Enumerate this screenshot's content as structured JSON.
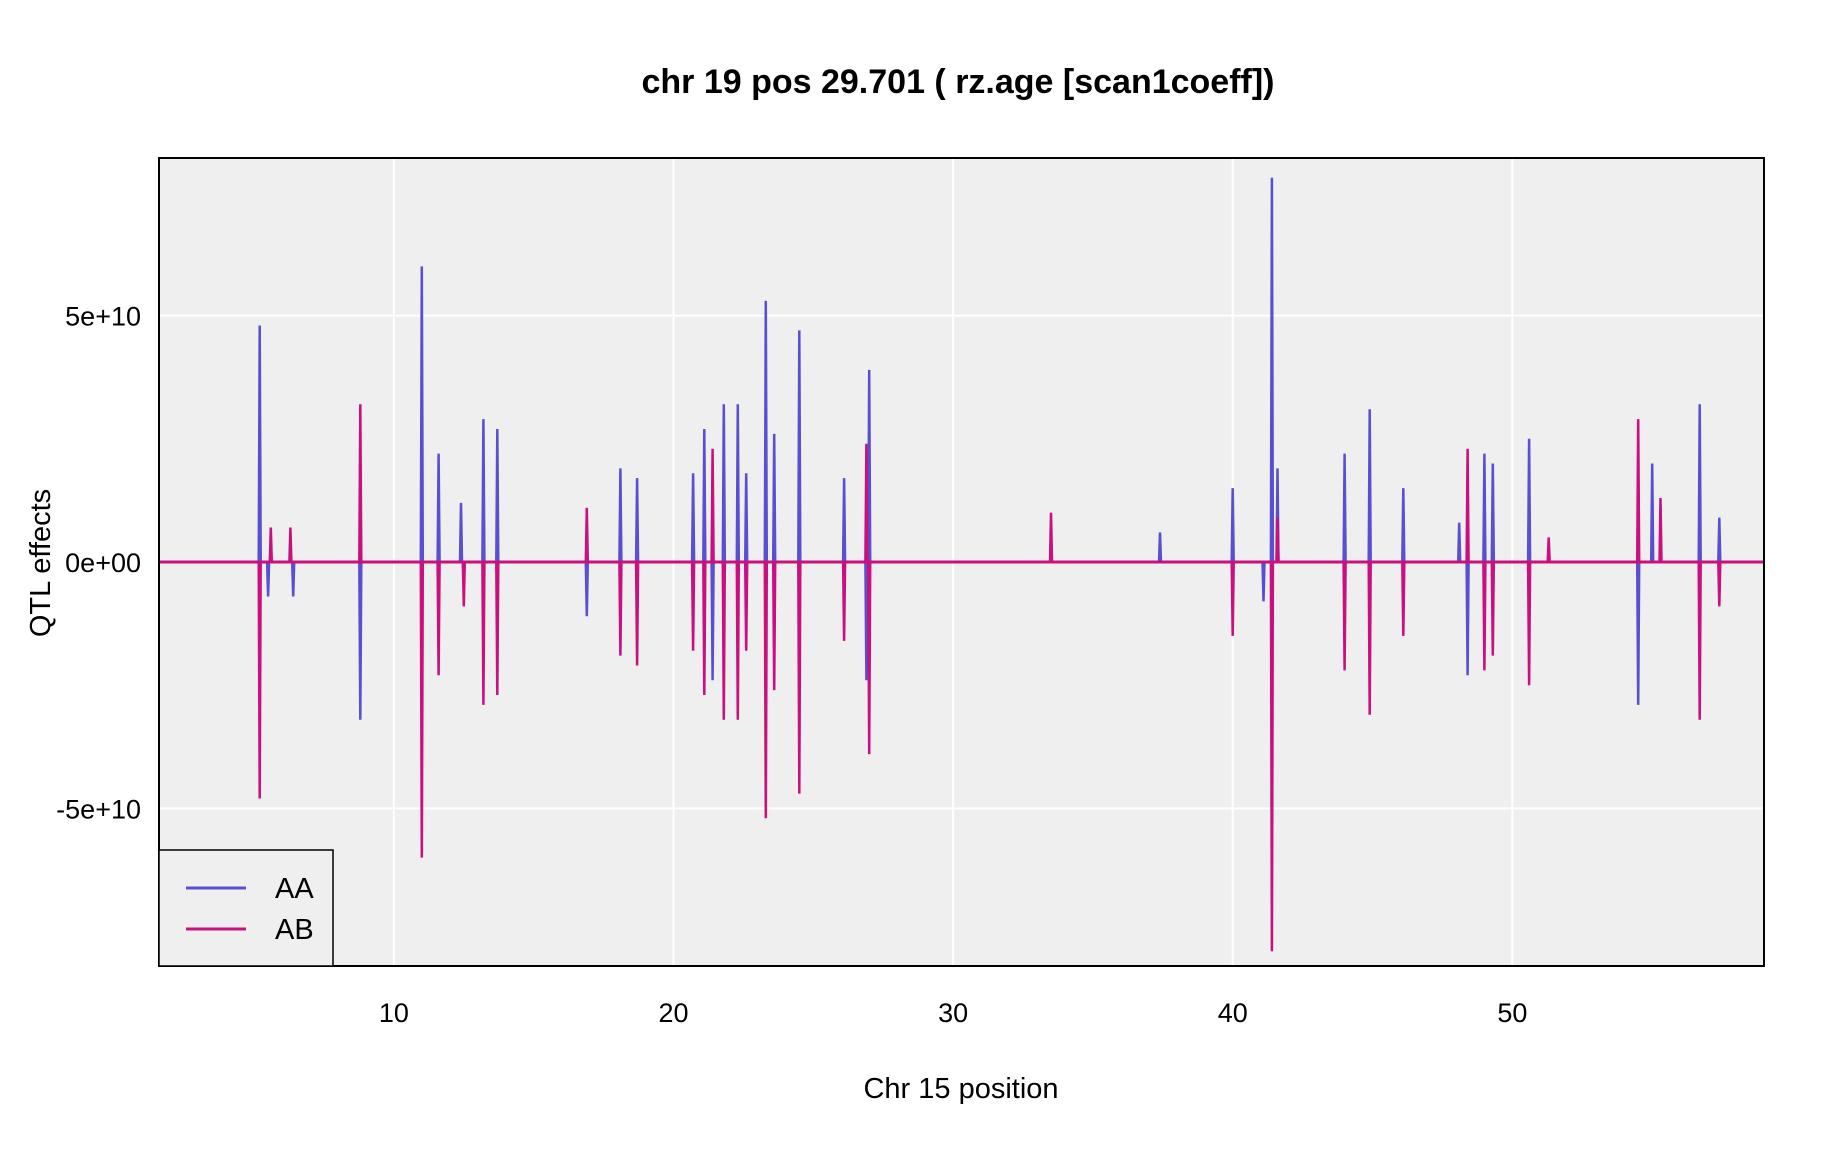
{
  "chart_data": {
    "type": "line",
    "title": "chr 19 pos 29.701 ( rz.age  [scan1coeff])",
    "xlabel": "Chr 15 position",
    "ylabel": "QTL effects",
    "xlim": [
      1.6,
      59.0
    ],
    "ylim": [
      -82000000000.0,
      82000000000.0
    ],
    "x_ticks": [
      10,
      20,
      30,
      40,
      50
    ],
    "x_tick_labels": [
      "10",
      "20",
      "30",
      "40",
      "50"
    ],
    "y_ticks": [
      -50000000000.0,
      0,
      50000000000.0
    ],
    "y_tick_labels": [
      "-5e+10",
      "0e+00",
      "5e+10"
    ],
    "grid": true,
    "legend_position": "bottom-left",
    "series": [
      {
        "name": "AA",
        "color": "#5a4fcf",
        "spikes": [
          [
            5.2,
            48000000000.0
          ],
          [
            5.5,
            -7000000000.0
          ],
          [
            6.4,
            -7000000000.0
          ],
          [
            8.8,
            -32000000000.0
          ],
          [
            11.0,
            60000000000.0
          ],
          [
            11.6,
            22000000000.0
          ],
          [
            12.4,
            12000000000.0
          ],
          [
            13.2,
            29000000000.0
          ],
          [
            13.7,
            27000000000.0
          ],
          [
            16.9,
            -11000000000.0
          ],
          [
            18.1,
            19000000000.0
          ],
          [
            18.7,
            17000000000.0
          ],
          [
            20.7,
            18000000000.0
          ],
          [
            21.1,
            27000000000.0
          ],
          [
            21.4,
            -24000000000.0
          ],
          [
            21.8,
            32000000000.0
          ],
          [
            22.3,
            32000000000.0
          ],
          [
            22.6,
            18000000000.0
          ],
          [
            23.3,
            53000000000.0
          ],
          [
            23.6,
            26000000000.0
          ],
          [
            24.5,
            47000000000.0
          ],
          [
            26.1,
            17000000000.0
          ],
          [
            26.9,
            -24000000000.0
          ],
          [
            27.0,
            39000000000.0
          ],
          [
            37.4,
            6000000000.0
          ],
          [
            40.0,
            15000000000.0
          ],
          [
            41.1,
            -8000000000.0
          ],
          [
            41.4,
            78000000000.0
          ],
          [
            41.6,
            19000000000.0
          ],
          [
            44.0,
            22000000000.0
          ],
          [
            44.9,
            31000000000.0
          ],
          [
            46.1,
            15000000000.0
          ],
          [
            48.1,
            8000000000.0
          ],
          [
            48.4,
            -23000000000.0
          ],
          [
            49.0,
            22000000000.0
          ],
          [
            49.3,
            20000000000.0
          ],
          [
            50.6,
            25000000000.0
          ],
          [
            54.5,
            -29000000000.0
          ],
          [
            55.0,
            20000000000.0
          ],
          [
            56.7,
            32000000000.0
          ],
          [
            57.4,
            9000000000.0
          ]
        ]
      },
      {
        "name": "AB",
        "color": "#c8107f",
        "spikes": [
          [
            5.2,
            -48000000000.0
          ],
          [
            5.6,
            7000000000.0
          ],
          [
            6.3,
            7000000000.0
          ],
          [
            8.8,
            32000000000.0
          ],
          [
            11.0,
            -60000000000.0
          ],
          [
            11.6,
            -23000000000.0
          ],
          [
            12.5,
            -9000000000.0
          ],
          [
            13.2,
            -29000000000.0
          ],
          [
            13.7,
            -27000000000.0
          ],
          [
            16.9,
            11000000000.0
          ],
          [
            18.1,
            -19000000000.0
          ],
          [
            18.7,
            -21000000000.0
          ],
          [
            20.7,
            -18000000000.0
          ],
          [
            21.1,
            -27000000000.0
          ],
          [
            21.4,
            23000000000.0
          ],
          [
            21.8,
            -32000000000.0
          ],
          [
            22.3,
            -32000000000.0
          ],
          [
            22.6,
            -18000000000.0
          ],
          [
            23.3,
            -52000000000.0
          ],
          [
            23.6,
            -26000000000.0
          ],
          [
            24.5,
            -47000000000.0
          ],
          [
            26.1,
            -16000000000.0
          ],
          [
            26.9,
            24000000000.0
          ],
          [
            27.0,
            -39000000000.0
          ],
          [
            33.5,
            10000000000.0
          ],
          [
            40.0,
            -15000000000.0
          ],
          [
            41.4,
            -79000000000.0
          ],
          [
            41.6,
            9000000000.0
          ],
          [
            44.0,
            -22000000000.0
          ],
          [
            44.9,
            -31000000000.0
          ],
          [
            46.1,
            -15000000000.0
          ],
          [
            48.4,
            23000000000.0
          ],
          [
            49.0,
            -22000000000.0
          ],
          [
            49.3,
            -19000000000.0
          ],
          [
            50.6,
            -25000000000.0
          ],
          [
            51.3,
            5000000000.0
          ],
          [
            54.5,
            29000000000.0
          ],
          [
            55.3,
            13000000000.0
          ],
          [
            56.7,
            -32000000000.0
          ],
          [
            57.4,
            -9000000000.0
          ]
        ]
      }
    ]
  }
}
